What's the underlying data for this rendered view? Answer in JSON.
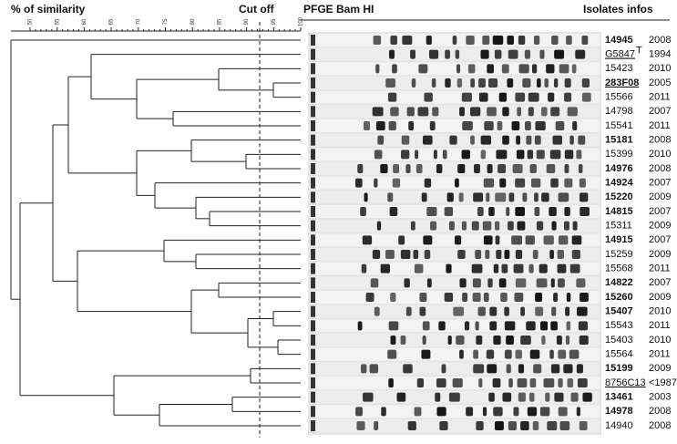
{
  "header": {
    "similarity": "% of similarity",
    "cutoff": "Cut off",
    "gel": "PFGE Bam HI",
    "isolates": "Isolates infos"
  },
  "scale_labels": [
    "50",
    "55",
    "60",
    "65",
    "70",
    "75",
    "80",
    "85",
    "90",
    "95",
    "100"
  ],
  "isolates": [
    {
      "id": "14945",
      "year": "2008",
      "bold": true
    },
    {
      "id": "G5847",
      "sup": "T",
      "year": "1994",
      "underline": true
    },
    {
      "id": "15423",
      "year": "2010"
    },
    {
      "id": "283F08",
      "year": "2005",
      "bold": true,
      "underline": true
    },
    {
      "id": "15566",
      "year": "2011"
    },
    {
      "id": "14798",
      "year": "2007"
    },
    {
      "id": "15541",
      "year": "2011"
    },
    {
      "id": "15181",
      "year": "2008",
      "bold": true
    },
    {
      "id": "15399",
      "year": "2010"
    },
    {
      "id": "14976",
      "year": "2008",
      "bold": true
    },
    {
      "id": "14924",
      "year": "2007",
      "bold": true
    },
    {
      "id": "15220",
      "year": "2009",
      "bold": true
    },
    {
      "id": "14815",
      "year": "2007",
      "bold": true
    },
    {
      "id": "15311",
      "year": "2009"
    },
    {
      "id": "14915",
      "year": "2007",
      "bold": true
    },
    {
      "id": "15259",
      "year": "2009"
    },
    {
      "id": "15568",
      "year": "2011"
    },
    {
      "id": "14822",
      "year": "2007",
      "bold": true
    },
    {
      "id": "15260",
      "year": "2009",
      "bold": true
    },
    {
      "id": "15407",
      "year": "2010",
      "bold": true
    },
    {
      "id": "15543",
      "year": "2011"
    },
    {
      "id": "15403",
      "year": "2010"
    },
    {
      "id": "15564",
      "year": "2011"
    },
    {
      "id": "15199",
      "year": "2009",
      "bold": true
    },
    {
      "id": "8756C13",
      "year": "<1987",
      "underline": true
    },
    {
      "id": "13461",
      "year": "2003",
      "bold": true
    },
    {
      "id": "14978",
      "year": "2008",
      "bold": true
    },
    {
      "id": "14940",
      "year": "2008"
    }
  ]
}
